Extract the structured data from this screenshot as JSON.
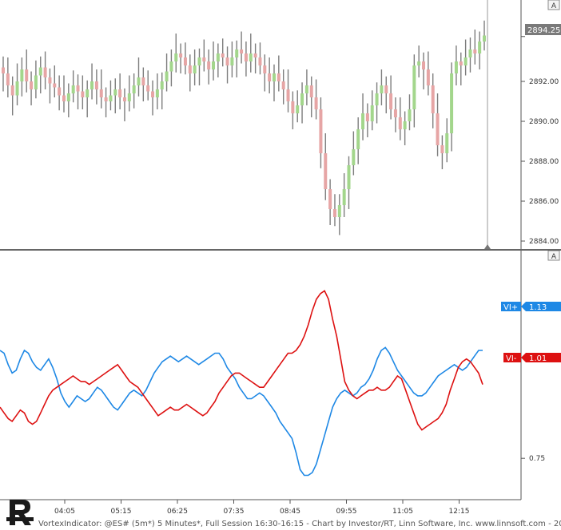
{
  "colors": {
    "up_bar": "#a3d68c",
    "down_bar": "#e6a5a5",
    "wick": "#7d7d7d",
    "vi_plus": "#1e88e5",
    "vi_minus": "#dd1111",
    "last_price_bg": "#7a7a7a"
  },
  "footer": "VortexIndicator: @ES# (5m*) 5 Minutes*, Full Session 16:30-16:15 - Chart by Investor/RT, Linn Software, Inc. www.linnsoft.com - 201",
  "autoscale_label": "A",
  "chart_data": [
    {
      "type": "ohlc",
      "y_ticks": [
        "2892.00",
        "2890.00",
        "2888.00",
        "2886.00",
        "2884.00"
      ],
      "ylim": [
        2883.6,
        2896.0
      ],
      "last_price": "2894.25",
      "grid": false,
      "close": [
        2892.4,
        2891.8,
        2891.3,
        2892.0,
        2892.6,
        2892.0,
        2891.6,
        2892.3,
        2892.7,
        2892.2,
        2891.9,
        2891.7,
        2891.3,
        2891.0,
        2891.4,
        2891.8,
        2891.5,
        2891.2,
        2891.6,
        2892.0,
        2891.6,
        2891.2,
        2891.0,
        2891.3,
        2891.6,
        2891.2,
        2891.0,
        2891.4,
        2891.8,
        2892.2,
        2891.8,
        2891.5,
        2891.2,
        2891.6,
        2892.0,
        2892.5,
        2893.0,
        2893.4,
        2893.2,
        2892.8,
        2892.4,
        2892.8,
        2893.2,
        2893.0,
        2892.6,
        2893.0,
        2893.4,
        2893.2,
        2892.8,
        2893.2,
        2893.6,
        2893.4,
        2893.0,
        2893.4,
        2893.2,
        2892.8,
        2892.4,
        2892.0,
        2892.4,
        2892.0,
        2891.6,
        2891.0,
        2890.4,
        2890.8,
        2891.4,
        2891.8,
        2891.2,
        2890.6,
        2888.4,
        2886.6,
        2885.6,
        2885.2,
        2885.8,
        2886.6,
        2887.8,
        2888.6,
        2889.6,
        2890.4,
        2890.0,
        2890.8,
        2891.4,
        2891.8,
        2891.4,
        2890.6,
        2890.2,
        2889.6,
        2890.0,
        2890.6,
        2892.8,
        2893.0,
        2892.6,
        2891.8,
        2890.4,
        2888.8,
        2888.4,
        2889.4,
        2892.4,
        2893.0,
        2892.8,
        2893.2,
        2893.6,
        2893.4,
        2894.0,
        2894.3
      ],
      "x_ticks": [
        "04:05",
        "05:15",
        "06:25",
        "07:35",
        "08:45",
        "09:55",
        "11:05",
        "12:15"
      ]
    },
    {
      "type": "line",
      "y_ticks": [
        "0.75"
      ],
      "ylim": [
        0.61,
        1.47
      ],
      "series": [
        {
          "name": "VI+",
          "last": "1.13",
          "values": [
            1.13,
            1.12,
            1.08,
            1.05,
            1.06,
            1.1,
            1.13,
            1.12,
            1.09,
            1.07,
            1.06,
            1.08,
            1.1,
            1.07,
            1.03,
            0.98,
            0.95,
            0.93,
            0.95,
            0.97,
            0.96,
            0.95,
            0.96,
            0.98,
            1.0,
            0.99,
            0.97,
            0.95,
            0.93,
            0.92,
            0.94,
            0.96,
            0.98,
            0.99,
            0.98,
            0.97,
            0.99,
            1.02,
            1.05,
            1.07,
            1.09,
            1.1,
            1.11,
            1.1,
            1.09,
            1.1,
            1.11,
            1.1,
            1.09,
            1.08,
            1.09,
            1.1,
            1.11,
            1.12,
            1.12,
            1.1,
            1.07,
            1.05,
            1.03,
            1.0,
            0.98,
            0.96,
            0.96,
            0.97,
            0.98,
            0.97,
            0.95,
            0.93,
            0.91,
            0.88,
            0.86,
            0.84,
            0.82,
            0.77,
            0.71,
            0.69,
            0.69,
            0.7,
            0.73,
            0.78,
            0.83,
            0.88,
            0.93,
            0.96,
            0.98,
            0.99,
            0.98,
            0.97,
            0.98,
            1.0,
            1.01,
            1.03,
            1.06,
            1.1,
            1.13,
            1.14,
            1.12,
            1.09,
            1.06,
            1.04,
            1.02,
            1.0,
            0.98,
            0.97,
            0.97,
            0.98,
            1.0,
            1.02,
            1.04,
            1.05,
            1.06,
            1.07,
            1.08,
            1.07,
            1.06,
            1.07,
            1.09,
            1.11,
            1.13,
            1.13
          ]
        },
        {
          "name": "VI-",
          "last": "1.01",
          "values": [
            0.93,
            0.91,
            0.89,
            0.88,
            0.9,
            0.92,
            0.91,
            0.88,
            0.87,
            0.88,
            0.91,
            0.94,
            0.97,
            0.99,
            1.0,
            1.01,
            1.02,
            1.03,
            1.04,
            1.03,
            1.02,
            1.02,
            1.01,
            1.02,
            1.03,
            1.04,
            1.05,
            1.06,
            1.07,
            1.08,
            1.06,
            1.04,
            1.02,
            1.01,
            1.0,
            0.98,
            0.96,
            0.94,
            0.92,
            0.9,
            0.91,
            0.92,
            0.93,
            0.92,
            0.92,
            0.93,
            0.94,
            0.93,
            0.92,
            0.91,
            0.9,
            0.91,
            0.93,
            0.95,
            0.98,
            1.0,
            1.02,
            1.04,
            1.05,
            1.05,
            1.04,
            1.03,
            1.02,
            1.01,
            1.0,
            1.0,
            1.02,
            1.04,
            1.06,
            1.08,
            1.1,
            1.12,
            1.12,
            1.13,
            1.15,
            1.18,
            1.22,
            1.27,
            1.31,
            1.33,
            1.34,
            1.31,
            1.24,
            1.18,
            1.1,
            1.02,
            0.99,
            0.97,
            0.96,
            0.97,
            0.98,
            0.99,
            0.99,
            1.0,
            0.99,
            0.99,
            1.0,
            1.02,
            1.04,
            1.03,
            0.99,
            0.95,
            0.91,
            0.87,
            0.85,
            0.86,
            0.87,
            0.88,
            0.89,
            0.91,
            0.94,
            0.99,
            1.03,
            1.07,
            1.09,
            1.1,
            1.09,
            1.07,
            1.05,
            1.01
          ]
        }
      ]
    }
  ]
}
